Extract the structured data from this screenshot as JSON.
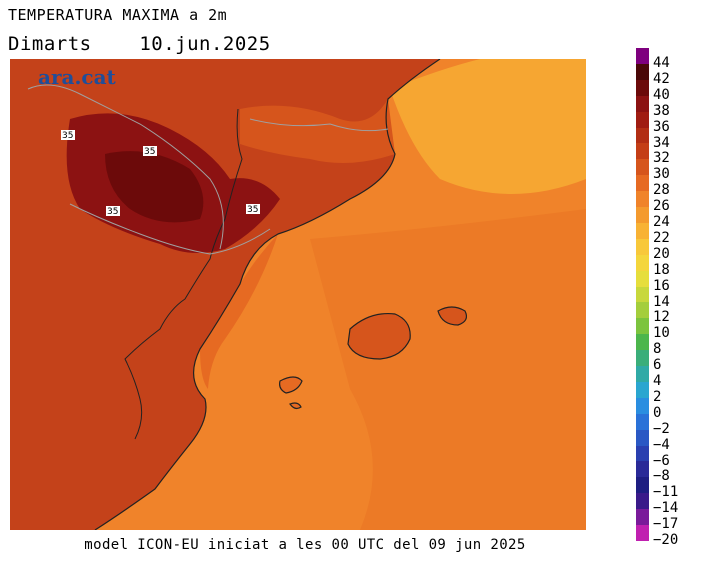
{
  "title": "TEMPERATURA MAXIMA a 2m",
  "day": "Dimarts",
  "date": "10.jun.2025",
  "logo": "ara.cat",
  "footer": "model ICON-EU iniciat a les 00 UTC del 09 jun 2025",
  "contour_label": "35",
  "legend": {
    "labels": [
      "44",
      "42",
      "40",
      "38",
      "36",
      "34",
      "32",
      "30",
      "28",
      "26",
      "24",
      "22",
      "20",
      "18",
      "16",
      "14",
      "12",
      "10",
      "8",
      "6",
      "4",
      "2",
      "0",
      "−2",
      "−4",
      "−6",
      "−8",
      "−11",
      "−14",
      "−17",
      "−20"
    ],
    "colors": [
      "#7e007e",
      "#4a0808",
      "#6c0a0a",
      "#8c1212",
      "#a01c12",
      "#b22e14",
      "#c43e16",
      "#d6551c",
      "#e66a22",
      "#f0832a",
      "#f49a2e",
      "#f8b234",
      "#f8c83a",
      "#f4d63c",
      "#e6de3c",
      "#c8d83c",
      "#a4ce3c",
      "#7cc43e",
      "#4cb64c",
      "#3aae7a",
      "#30aaa6",
      "#2aa6d0",
      "#2a8ee0",
      "#2a72d8",
      "#2a58c4",
      "#2a40b0",
      "#2a2a98",
      "#1e1e82",
      "#3a1a8a",
      "#7a1a9a",
      "#c020b0"
    ]
  }
}
